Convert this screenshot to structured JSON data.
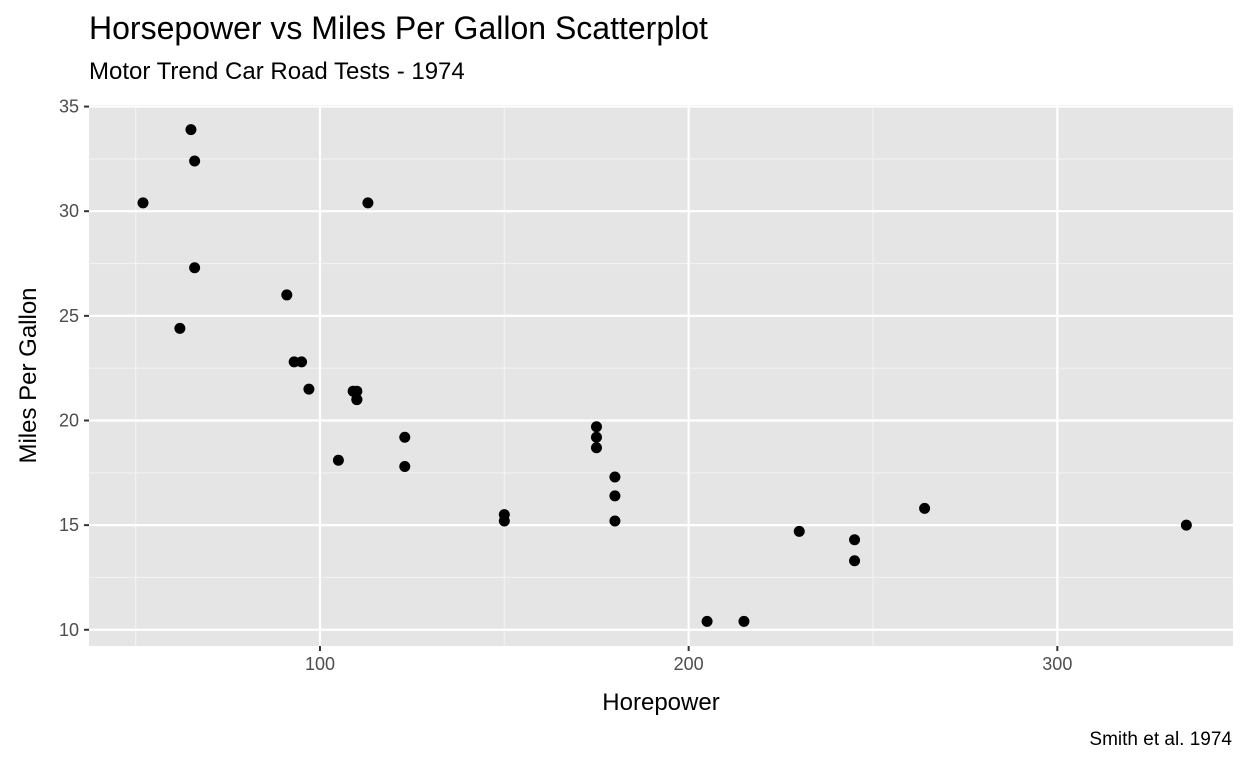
{
  "chart_data": {
    "type": "scatter",
    "title": "Horsepower vs Miles Per Gallon Scatterplot",
    "subtitle": "Motor Trend Car Road Tests - 1974",
    "caption": "Smith et al. 1974",
    "xlabel": "Horepower",
    "ylabel": "Miles Per Gallon",
    "xlim": [
      37.35,
      347.65
    ],
    "ylim": [
      9.225,
      35.075
    ],
    "x_ticks": [
      100,
      200,
      300
    ],
    "y_ticks": [
      10,
      15,
      20,
      25,
      30,
      35
    ],
    "grid": true,
    "legend": "none",
    "colors": {
      "panel_background": "#e5e5e5",
      "grid_major": "#ffffff",
      "grid_minor": "#f2f2f2",
      "point": "#000000",
      "tick_label": "#4d4d4d"
    },
    "points": [
      {
        "x": 110,
        "y": 21.0
      },
      {
        "x": 110,
        "y": 21.0
      },
      {
        "x": 93,
        "y": 22.8
      },
      {
        "x": 110,
        "y": 21.4
      },
      {
        "x": 175,
        "y": 18.7
      },
      {
        "x": 105,
        "y": 18.1
      },
      {
        "x": 245,
        "y": 14.3
      },
      {
        "x": 62,
        "y": 24.4
      },
      {
        "x": 95,
        "y": 22.8
      },
      {
        "x": 123,
        "y": 19.2
      },
      {
        "x": 123,
        "y": 17.8
      },
      {
        "x": 180,
        "y": 16.4
      },
      {
        "x": 180,
        "y": 17.3
      },
      {
        "x": 180,
        "y": 15.2
      },
      {
        "x": 205,
        "y": 10.4
      },
      {
        "x": 215,
        "y": 10.4
      },
      {
        "x": 230,
        "y": 14.7
      },
      {
        "x": 66,
        "y": 32.4
      },
      {
        "x": 52,
        "y": 30.4
      },
      {
        "x": 65,
        "y": 33.9
      },
      {
        "x": 97,
        "y": 21.5
      },
      {
        "x": 150,
        "y": 15.5
      },
      {
        "x": 150,
        "y": 15.2
      },
      {
        "x": 245,
        "y": 13.3
      },
      {
        "x": 175,
        "y": 19.2
      },
      {
        "x": 66,
        "y": 27.3
      },
      {
        "x": 91,
        "y": 26.0
      },
      {
        "x": 113,
        "y": 30.4
      },
      {
        "x": 264,
        "y": 15.8
      },
      {
        "x": 175,
        "y": 19.7
      },
      {
        "x": 335,
        "y": 15.0
      },
      {
        "x": 109,
        "y": 21.4
      }
    ]
  }
}
